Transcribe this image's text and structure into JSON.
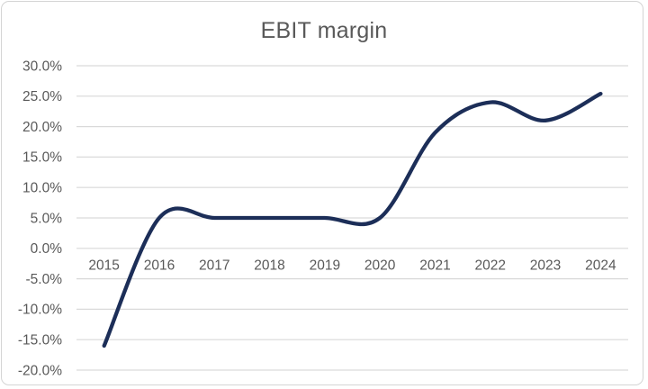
{
  "chart_data": {
    "type": "line",
    "title": "EBIT margin",
    "smoothed": true,
    "markers": false,
    "legend": "none",
    "grid": true,
    "categories": [
      "2015",
      "2016",
      "2017",
      "2018",
      "2019",
      "2020",
      "2021",
      "2022",
      "2023",
      "2024"
    ],
    "values": [
      -16,
      5,
      5,
      5,
      5,
      5,
      19,
      24,
      21,
      25.4
    ],
    "value_unit": "%",
    "xlabel": "",
    "ylabel": "",
    "ylim": [
      -20,
      30
    ],
    "ytick_step": 5,
    "yticks": [
      30,
      25,
      20,
      15,
      10,
      5,
      0,
      -5,
      -10,
      -15,
      -20
    ],
    "ytick_labels": [
      "30.0%",
      "25.0%",
      "20.0%",
      "15.0%",
      "10.0%",
      "5.0%",
      "0.0%",
      "-5.0%",
      "-10.0%",
      "-15.0%",
      "-20.0%"
    ],
    "colors": {
      "line": "#1c2e58",
      "grid": "#d9d9d9",
      "tick_text": "#595959",
      "title_text": "#595959",
      "border": "#d4d4d4",
      "background": "#ffffff"
    }
  }
}
